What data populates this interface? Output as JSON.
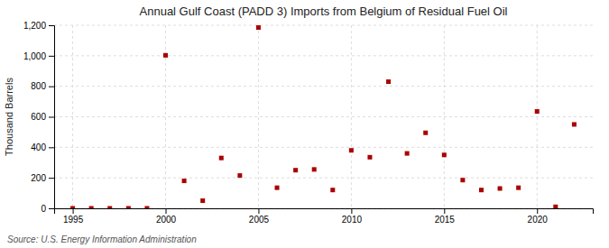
{
  "chart_data": {
    "type": "scatter",
    "title": "Annual Gulf Coast (PADD 3) Imports from Belgium of Residual Fuel Oil",
    "ylabel": "Thousand Barrels",
    "source": "Source: U.S. Energy Information Administration",
    "x": [
      1995,
      1996,
      1997,
      1998,
      1999,
      2000,
      2001,
      2002,
      2003,
      2004,
      2005,
      2006,
      2007,
      2008,
      2009,
      2010,
      2011,
      2012,
      2013,
      2014,
      2015,
      2016,
      2017,
      2018,
      2019,
      2020,
      2021,
      2022
    ],
    "values": [
      0,
      0,
      0,
      0,
      0,
      1003,
      180,
      50,
      330,
      215,
      1185,
      135,
      250,
      255,
      120,
      380,
      335,
      830,
      360,
      495,
      350,
      185,
      120,
      130,
      135,
      635,
      10,
      550
    ],
    "color": "#aa0000",
    "marker": "square",
    "xlim": [
      1994,
      2023
    ],
    "ylim": [
      0,
      1200
    ],
    "xticks": [
      1995,
      2000,
      2005,
      2010,
      2015,
      2020
    ],
    "yticks": [
      0,
      200,
      400,
      600,
      800,
      {
        "value": 1000,
        "label": "1,000"
      },
      {
        "value": 1200,
        "label": "1,200"
      }
    ],
    "grid": true
  }
}
